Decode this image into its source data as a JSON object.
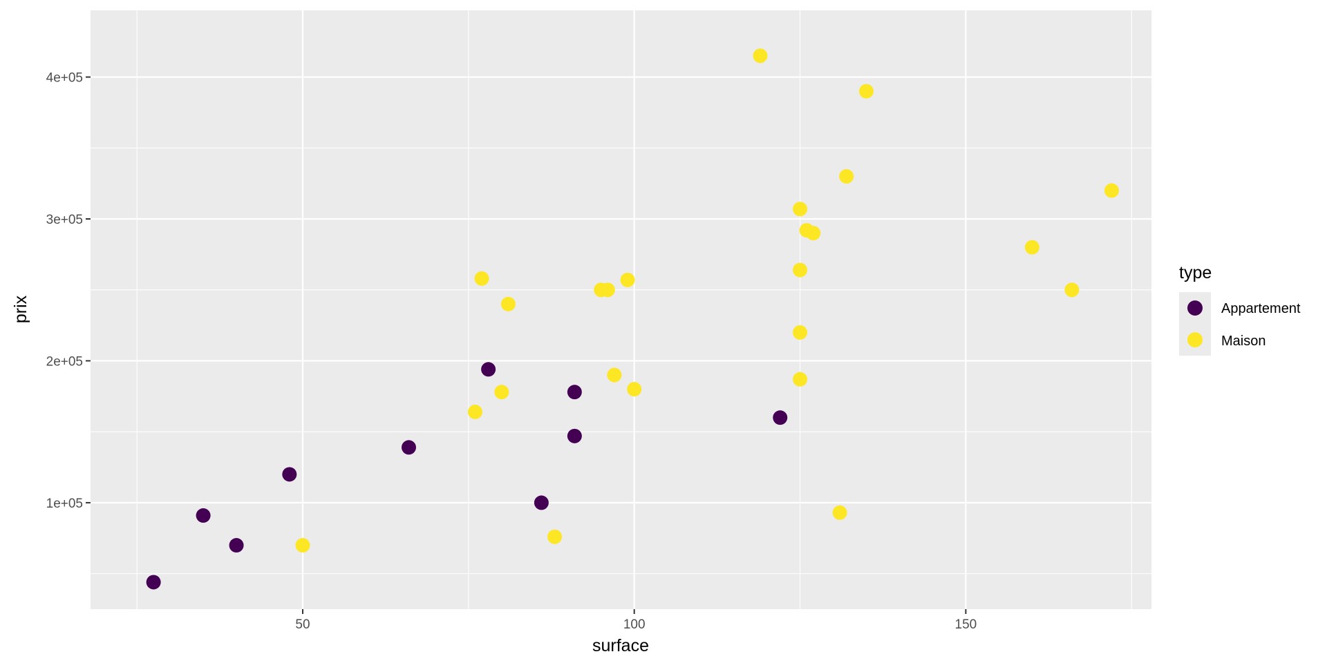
{
  "chart_data": {
    "type": "scatter",
    "xlabel": "surface",
    "ylabel": "prix",
    "xlim": [
      18,
      178
    ],
    "ylim": [
      25000,
      447000
    ],
    "x_ticks": [
      50,
      100,
      150
    ],
    "x_tick_labels": [
      "50",
      "100",
      "150"
    ],
    "y_ticks": [
      100000,
      200000,
      300000,
      400000
    ],
    "y_tick_labels": [
      "1e+05",
      "2e+05",
      "3e+05",
      "4e+05"
    ],
    "grid": true,
    "legend": {
      "title": "type",
      "position": "right",
      "entries": [
        {
          "label": "Appartement",
          "color": "#440154"
        },
        {
          "label": "Maison",
          "color": "#fde725"
        }
      ]
    },
    "series": [
      {
        "name": "Appartement",
        "color": "#440154",
        "points": [
          {
            "x": 27.5,
            "y": 44000
          },
          {
            "x": 35,
            "y": 91000
          },
          {
            "x": 40,
            "y": 70000
          },
          {
            "x": 48,
            "y": 120000
          },
          {
            "x": 66,
            "y": 139000
          },
          {
            "x": 78,
            "y": 194000
          },
          {
            "x": 86,
            "y": 100000
          },
          {
            "x": 91,
            "y": 178000
          },
          {
            "x": 91,
            "y": 147000
          },
          {
            "x": 122,
            "y": 160000
          }
        ]
      },
      {
        "name": "Maison",
        "color": "#fde725",
        "points": [
          {
            "x": 50,
            "y": 70000
          },
          {
            "x": 76,
            "y": 164000
          },
          {
            "x": 77,
            "y": 258000
          },
          {
            "x": 80,
            "y": 178000
          },
          {
            "x": 81,
            "y": 240000
          },
          {
            "x": 88,
            "y": 76000
          },
          {
            "x": 95,
            "y": 250000
          },
          {
            "x": 96,
            "y": 250000
          },
          {
            "x": 97,
            "y": 190000
          },
          {
            "x": 99,
            "y": 257000
          },
          {
            "x": 100,
            "y": 180000
          },
          {
            "x": 119,
            "y": 415000
          },
          {
            "x": 125,
            "y": 307000
          },
          {
            "x": 125,
            "y": 264000
          },
          {
            "x": 125,
            "y": 220000
          },
          {
            "x": 125,
            "y": 187000
          },
          {
            "x": 126,
            "y": 292000
          },
          {
            "x": 127,
            "y": 290000
          },
          {
            "x": 131,
            "y": 93000
          },
          {
            "x": 132,
            "y": 330000
          },
          {
            "x": 135,
            "y": 390000
          },
          {
            "x": 160,
            "y": 280000
          },
          {
            "x": 166,
            "y": 250000
          },
          {
            "x": 172,
            "y": 320000
          }
        ]
      }
    ]
  }
}
